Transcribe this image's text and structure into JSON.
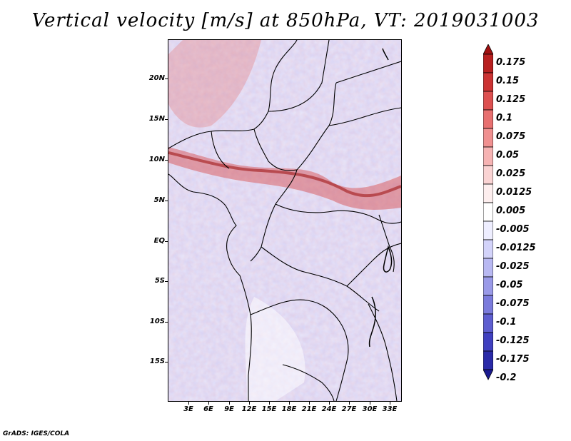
{
  "title": "Vertical velocity [m/s] at 850hPa, VT: 2019031003",
  "credit": "GrADS: IGES/COLA",
  "lat_labels": [
    "20N",
    "15N",
    "10N",
    "5N",
    "EQ",
    "5S",
    "10S",
    "15S"
  ],
  "lon_labels": [
    "3E",
    "6E",
    "9E",
    "12E",
    "15E",
    "18E",
    "21E",
    "24E",
    "27E",
    "30E",
    "33E"
  ],
  "colorbar": {
    "labels": [
      "0.175",
      "0.15",
      "0.125",
      "0.1",
      "0.075",
      "0.05",
      "0.025",
      "0.0125",
      "0.005",
      "-0.005",
      "-0.0125",
      "-0.025",
      "-0.05",
      "-0.075",
      "-0.1",
      "-0.125",
      "-0.175",
      "-0.2"
    ],
    "colors": [
      "#a01010",
      "#b82020",
      "#cc3333",
      "#dd5050",
      "#e87070",
      "#f09090",
      "#f6b3b3",
      "#fad3d3",
      "#fdeeee",
      "#ffffff",
      "#eeeeff",
      "#d3d3fa",
      "#b8b8f2",
      "#9a9ae8",
      "#7b7bdc",
      "#5e5ed0",
      "#4040c0",
      "#2a2aa8",
      "#1a1a90"
    ]
  }
}
